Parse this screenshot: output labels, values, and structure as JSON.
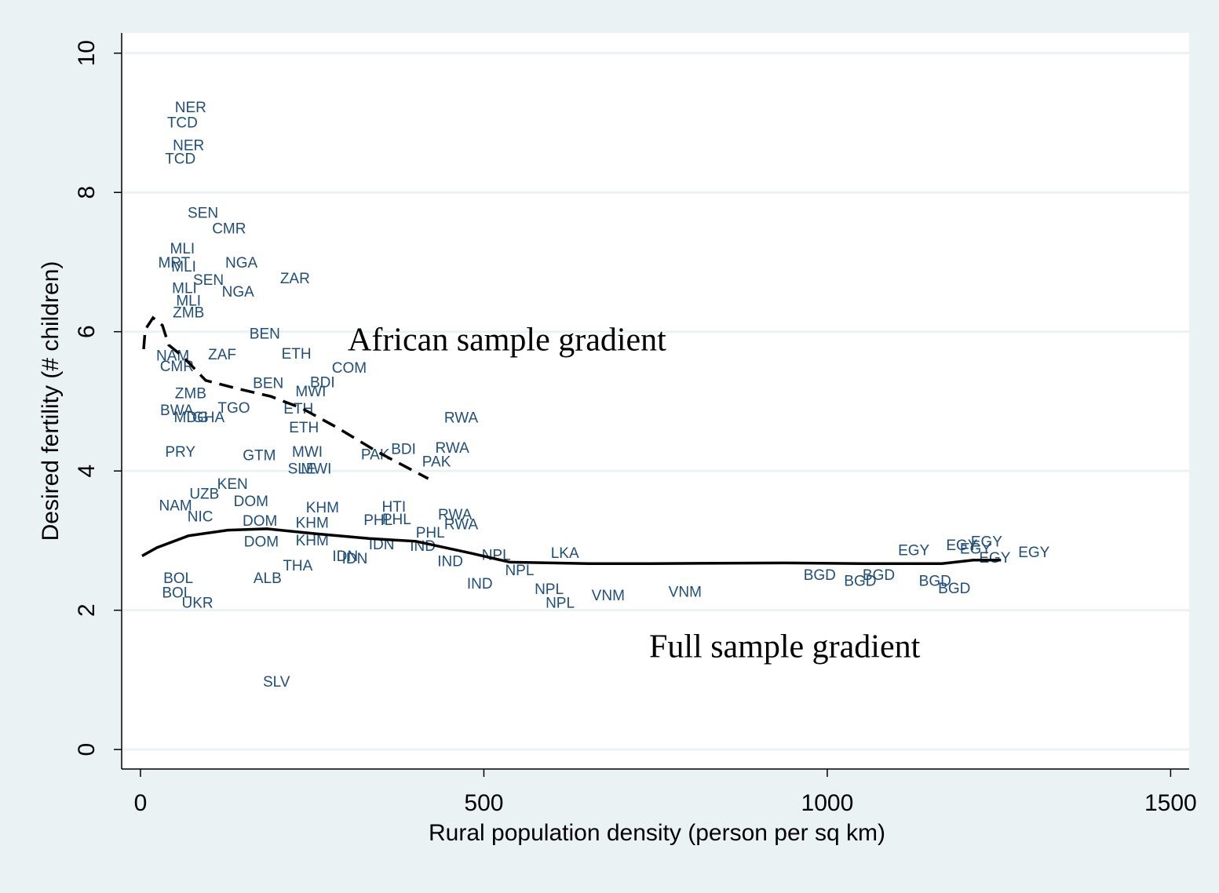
{
  "chart_data": {
    "type": "scatter",
    "x_label": "Rural population density (person per sq km)",
    "y_label": "Desired fertility (# children)",
    "xlim": [
      -27.4,
      1527
    ],
    "ylim": [
      -0.28,
      10.29
    ],
    "xticks": [
      0,
      500,
      1000,
      1500
    ],
    "yticks": [
      0,
      2,
      4,
      6,
      8,
      10
    ],
    "grid": true,
    "point_color": "#1f4e79",
    "point_labels": [
      "NER",
      "TCD",
      "NER",
      "TCD",
      "SEN",
      "CMR",
      "MLI",
      "MRT",
      "MLI",
      "NGA",
      "ZAR",
      "SEN",
      "MLI",
      "NGA",
      "MLI",
      "ZMB",
      "BEN",
      "ETH",
      "COM",
      "NAM",
      "CMR",
      "ZAF",
      "BEN",
      "BDI",
      "MWI",
      "ZMB",
      "BWA",
      "TGO",
      "ETH",
      "MDG",
      "GHA",
      "RWA",
      "ETH",
      "PRY",
      "GTM",
      "MWI",
      "BDI",
      "RWA",
      "PAK",
      "PAK",
      "MWI",
      "SLE",
      "KEN",
      "UZB",
      "NAM",
      "HTI",
      "KHM",
      "DOM",
      "NIC",
      "RWA",
      "RWA",
      "PHL",
      "PHL",
      "KHM",
      "DOM",
      "PHL",
      "KHM",
      "DOM",
      "IND",
      "IDN",
      "IND",
      "NPL",
      "LKA",
      "IDN",
      "IDN",
      "THA",
      "ALB",
      "NPL",
      "IND",
      "NPL",
      "NPL",
      "VNM",
      "VNM",
      "EGY",
      "EGY",
      "EGY",
      "EGY",
      "EGY",
      "EGY",
      "BGD",
      "BGD",
      "BGD",
      "BGD",
      "BGD",
      "SLV",
      "UKR",
      "BOL",
      "BOL"
    ],
    "x": [
      73,
      61,
      70,
      58,
      91,
      129,
      61,
      49,
      63,
      147,
      225,
      99,
      64,
      142,
      70,
      70,
      181,
      227,
      304,
      47,
      53,
      119,
      186,
      265,
      248,
      73,
      53,
      136,
      230,
      74,
      99,
      467,
      238,
      58,
      173,
      243,
      383,
      454,
      342,
      431,
      256,
      235,
      134,
      93,
      51,
      369,
      265,
      161,
      87,
      458,
      467,
      346,
      373,
      250,
      174,
      422,
      250,
      176,
      411,
      351,
      451,
      518,
      618,
      298,
      312,
      229,
      185,
      552,
      494,
      595,
      611,
      681,
      793,
      1126,
      1196,
      1232,
      1216,
      1244,
      1301,
      989,
      1048,
      1075,
      1157,
      1185,
      198,
      83,
      53,
      55
    ],
    "y": [
      9.21,
      8.99,
      8.66,
      8.47,
      7.69,
      7.47,
      7.18,
      6.98,
      6.92,
      6.98,
      6.75,
      6.73,
      6.61,
      6.56,
      6.43,
      6.26,
      5.96,
      5.67,
      5.47,
      5.64,
      5.49,
      5.66,
      5.25,
      5.26,
      5.13,
      5.1,
      4.86,
      4.89,
      4.88,
      4.76,
      4.76,
      4.75,
      4.61,
      4.26,
      4.21,
      4.26,
      4.3,
      4.32,
      4.22,
      4.12,
      4.02,
      4.02,
      3.8,
      3.66,
      3.49,
      3.47,
      3.46,
      3.55,
      3.33,
      3.36,
      3.22,
      3.28,
      3.29,
      3.24,
      3.27,
      3.1,
      2.99,
      2.97,
      2.91,
      2.93,
      2.69,
      2.78,
      2.81,
      2.76,
      2.73,
      2.63,
      2.45,
      2.56,
      2.37,
      2.29,
      2.09,
      2.2,
      2.25,
      2.85,
      2.92,
      2.97,
      2.87,
      2.74,
      2.82,
      2.49,
      2.41,
      2.49,
      2.41,
      2.3,
      0.96,
      2.09,
      2.24,
      2.45
    ],
    "lines": [
      {
        "label": "African sample gradient",
        "style": "dashed",
        "color": "#000000",
        "x": [
          4.6,
          6.9,
          18.3,
          32,
          41,
          62,
          95,
          138,
          190,
          235,
          287,
          344,
          419
        ],
        "y": [
          5.75,
          6.03,
          6.2,
          6.09,
          5.81,
          5.64,
          5.3,
          5.19,
          5.07,
          4.9,
          4.62,
          4.28,
          3.89
        ]
      },
      {
        "label": "Full sample gradient",
        "style": "solid",
        "color": "#000000",
        "x": [
          2.3,
          24,
          70,
          127,
          184,
          253,
          333,
          401,
          481,
          538,
          653,
          744,
          938,
          1053,
          1167,
          1213,
          1253
        ],
        "y": [
          2.78,
          2.9,
          3.07,
          3.15,
          3.17,
          3.1,
          3.03,
          2.99,
          2.82,
          2.69,
          2.67,
          2.67,
          2.68,
          2.67,
          2.67,
          2.72,
          2.72
        ]
      }
    ]
  }
}
